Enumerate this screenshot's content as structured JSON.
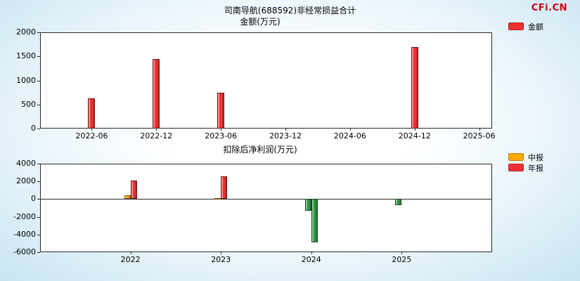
{
  "page": {
    "logo_text": "CFi.CN"
  },
  "chart_data": [
    {
      "type": "bar",
      "title": "司南导航(688592)非经常损益合计",
      "subtitle": "金额(万元)",
      "categories": [
        "2022-06",
        "2022-12",
        "2023-06",
        "2023-12",
        "2024-06",
        "2024-12",
        "2025-06"
      ],
      "series": [
        {
          "name": "金额",
          "color": "#ee3232",
          "values": [
            630,
            1440,
            750,
            null,
            null,
            1700,
            null
          ]
        }
      ],
      "ylim": [
        0,
        2000
      ],
      "yticks": [
        2000,
        1500,
        1000,
        500,
        0
      ],
      "grid": false,
      "legend_position": "top-right"
    },
    {
      "type": "bar",
      "title": "扣除后净利润(万元)",
      "categories": [
        "2022",
        "2023",
        "2024",
        "2025"
      ],
      "series": [
        {
          "name": "中报",
          "color": "#ffaa00",
          "values": [
            400,
            150,
            -1300,
            -650
          ]
        },
        {
          "name": "年报",
          "color": "#ee3232",
          "values": [
            2100,
            2550,
            -4900,
            null
          ]
        }
      ],
      "negative_color": "#2f9643",
      "ylim": [
        -6000,
        4000
      ],
      "yticks": [
        4000,
        2000,
        0,
        -2000,
        -4000,
        -6000
      ],
      "grid": false,
      "legend_position": "right"
    }
  ]
}
